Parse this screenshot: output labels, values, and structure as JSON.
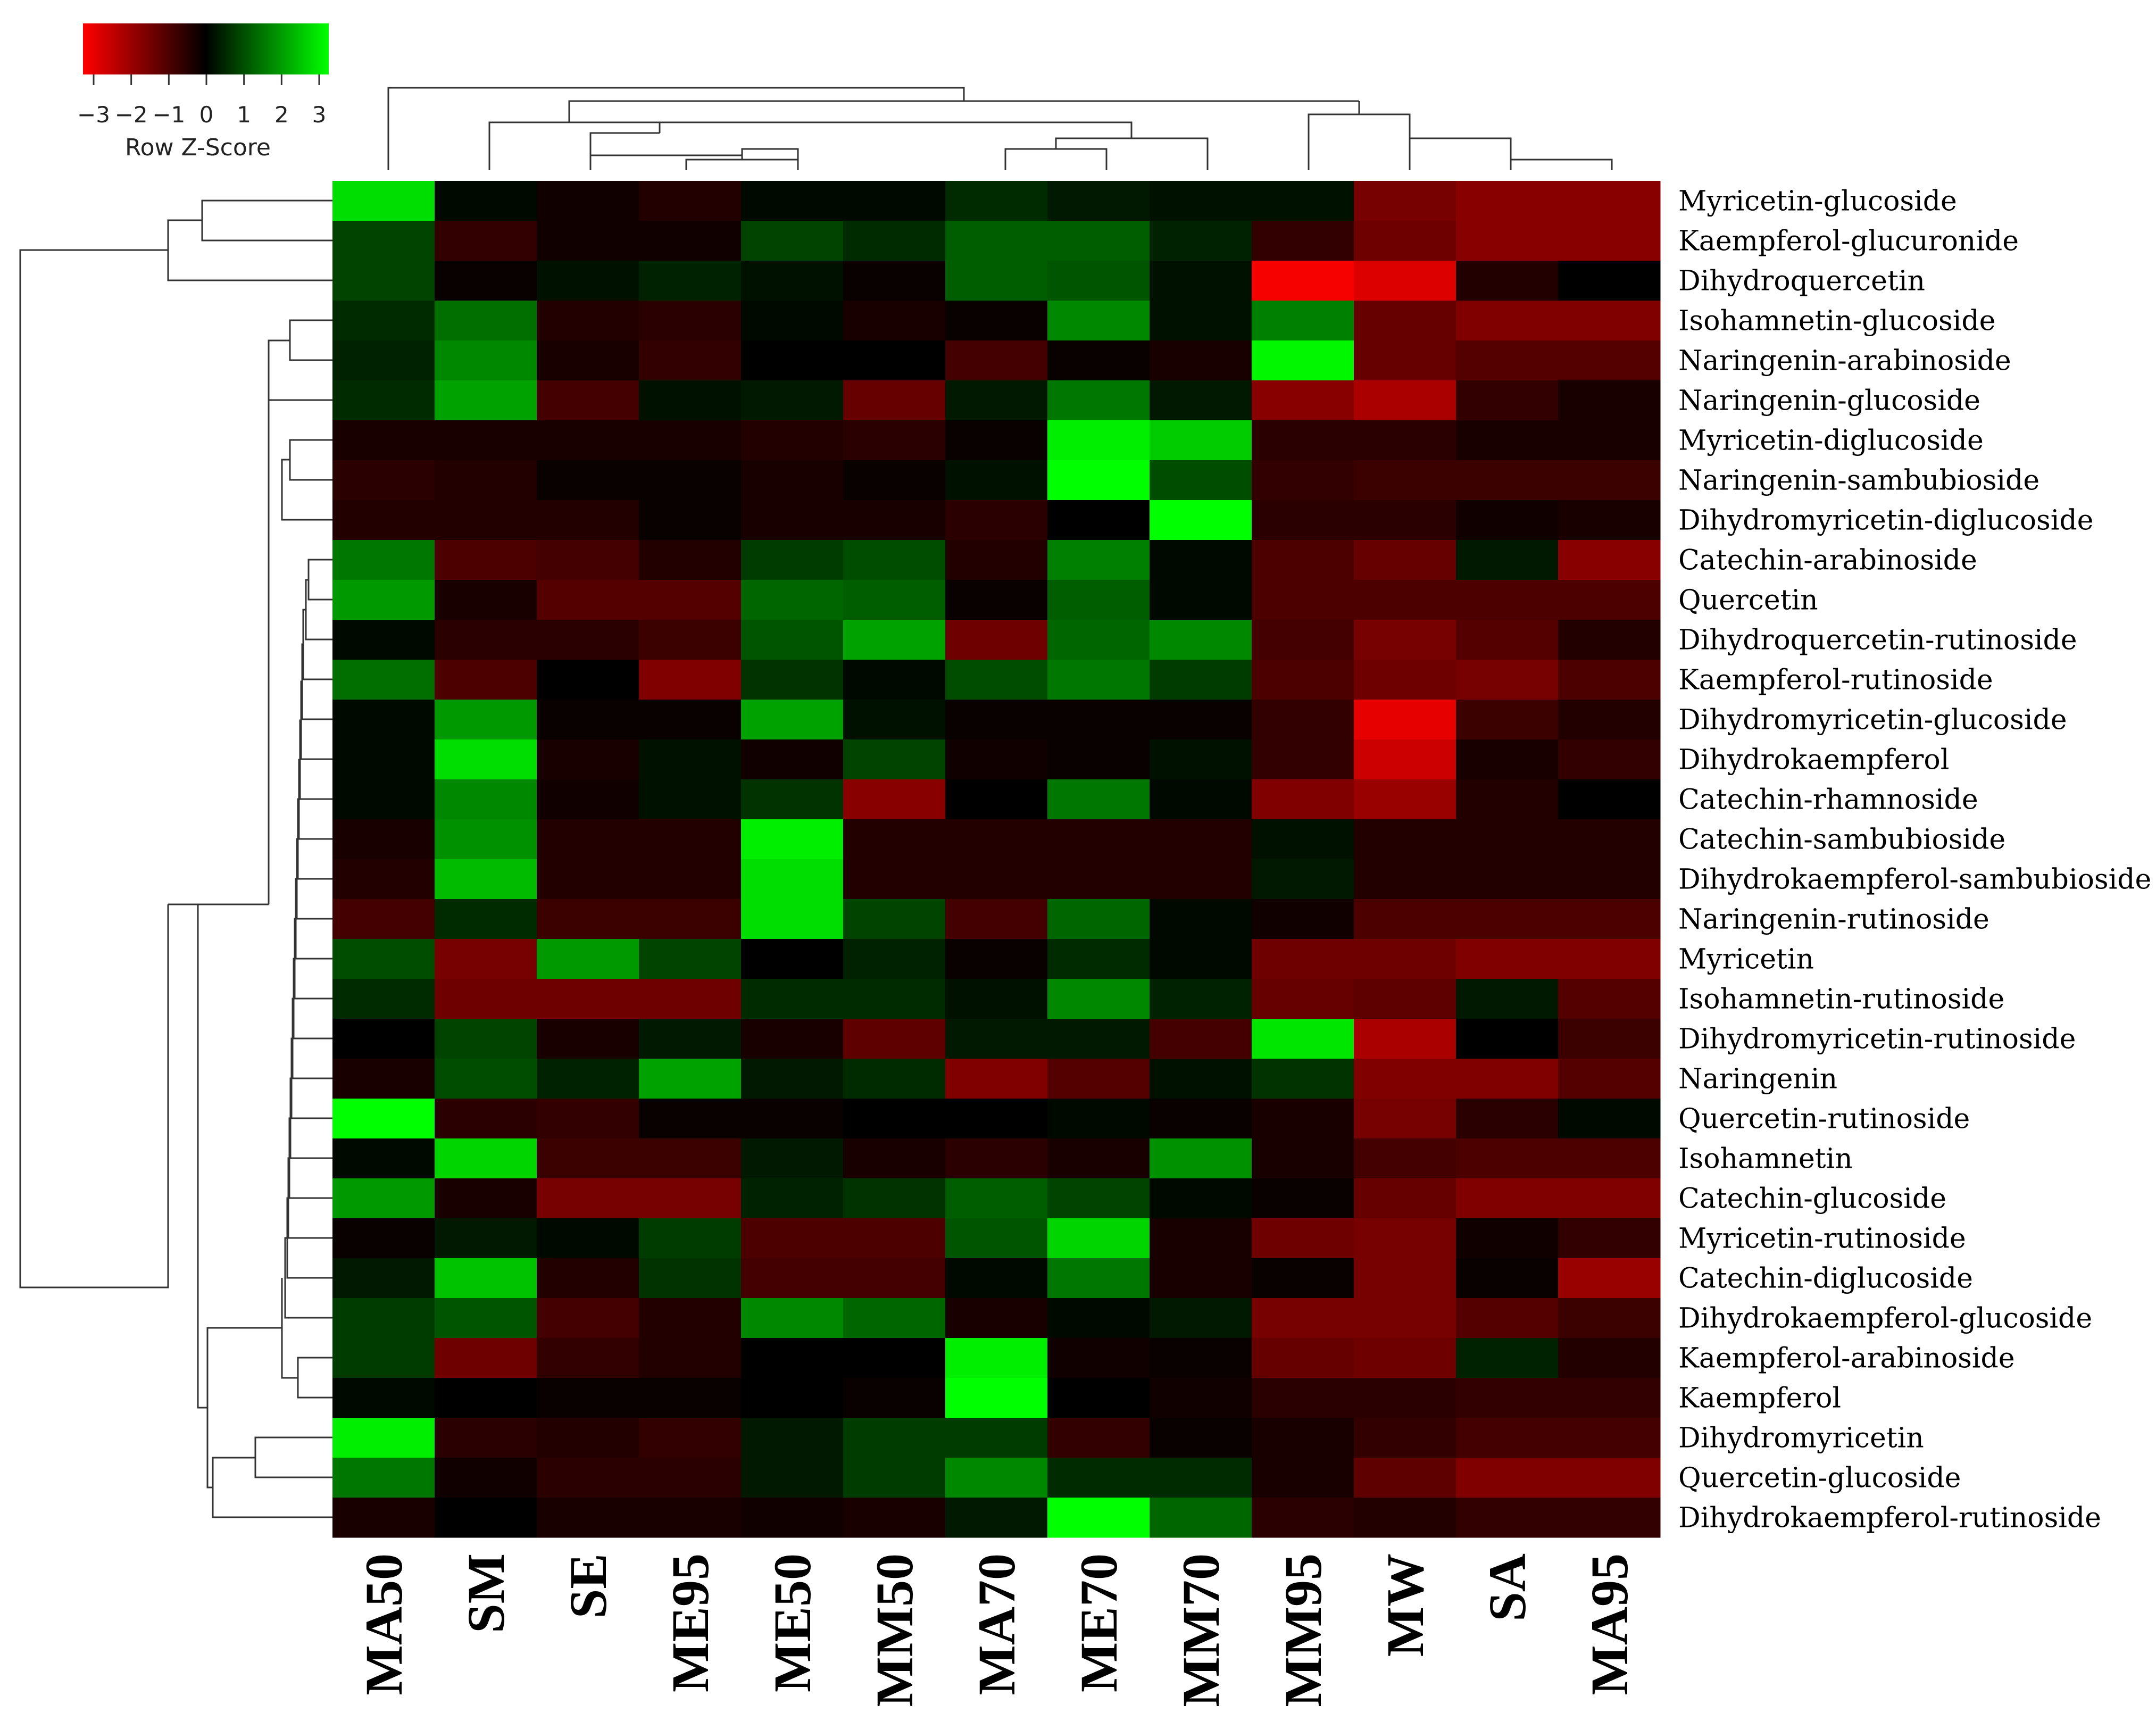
{
  "chart_data": {
    "type": "heatmap",
    "title": "",
    "color_key": {
      "title": "Row Z-Score",
      "ticks": [
        "−3",
        "−2",
        "−1",
        "0",
        "1",
        "2",
        "3"
      ],
      "low_color": "#ff0000",
      "mid_color": "#000000",
      "high_color": "#00ff00",
      "range": [
        -3,
        3
      ]
    },
    "columns": [
      "MA50",
      "SM",
      "SE",
      "ME95",
      "ME50",
      "MM50",
      "MA70",
      "ME70",
      "MM70",
      "MM95",
      "MW",
      "SA",
      "MA95"
    ],
    "rows": [
      "Myricetin-glucoside",
      "Kaempferol-glucuronide",
      "Dihydroquercetin",
      "Isohamnetin-glucoside",
      "Naringenin-arabinoside",
      "Naringenin-glucoside",
      "Myricetin-diglucoside",
      "Naringenin-sambubioside",
      "Dihydromyricetin-diglucoside",
      "Catechin-arabinoside",
      "Quercetin",
      "Dihydroquercetin-rutinoside",
      "Kaempferol-rutinoside",
      "Dihydromyricetin-glucoside",
      "Dihydrokaempferol",
      "Catechin-rhamnoside",
      "Catechin-sambubioside",
      "Dihydrokaempferol-sambubioside",
      "Naringenin-rutinoside",
      "Myricetin",
      "Isohamnetin-rutinoside",
      "Dihydromyricetin-rutinoside",
      "Naringenin",
      "Quercetin-rutinoside",
      "Isohamnetin",
      "Catechin-glucoside",
      "Myricetin-rutinoside",
      "Catechin-diglucoside",
      "Dihydrokaempferol-glucoside",
      "Kaempferol-arabinoside",
      "Kaempferol",
      "Dihydromyricetin",
      "Quercetin-glucoside",
      "Dihydrokaempferol-rutinoside"
    ],
    "values": [
      [
        2.6,
        0.1,
        -0.2,
        -0.4,
        0.1,
        0.1,
        0.5,
        0.3,
        0.2,
        0.2,
        -1.4,
        -1.6,
        -1.6
      ],
      [
        0.8,
        -0.6,
        -0.2,
        -0.2,
        0.8,
        0.5,
        1.1,
        1.1,
        0.4,
        -0.6,
        -1.3,
        -1.6,
        -1.6
      ],
      [
        0.8,
        -0.1,
        0.2,
        0.4,
        0.2,
        -0.1,
        1.1,
        1.0,
        0.2,
        -2.9,
        -2.6,
        -0.4,
        0.0
      ],
      [
        0.5,
        1.3,
        -0.4,
        -0.5,
        0.1,
        -0.3,
        -0.1,
        1.6,
        0.2,
        1.5,
        -1.2,
        -1.5,
        -1.5
      ],
      [
        0.4,
        1.6,
        -0.3,
        -0.6,
        0.0,
        0.0,
        -0.8,
        -0.1,
        -0.3,
        2.9,
        -1.2,
        -1.0,
        -1.0
      ],
      [
        0.5,
        1.9,
        -0.8,
        0.2,
        0.3,
        -1.2,
        0.3,
        1.4,
        0.3,
        -1.6,
        -2.0,
        -0.6,
        -0.3
      ],
      [
        -0.3,
        -0.3,
        -0.3,
        -0.3,
        -0.4,
        -0.5,
        -0.1,
        2.8,
        2.4,
        -0.5,
        -0.5,
        -0.3,
        -0.3
      ],
      [
        -0.5,
        -0.4,
        -0.1,
        -0.1,
        -0.3,
        -0.1,
        0.2,
        3.0,
        0.9,
        -0.6,
        -0.7,
        -0.7,
        -0.7
      ],
      [
        -0.4,
        -0.4,
        -0.4,
        -0.1,
        -0.3,
        -0.3,
        -0.5,
        0.0,
        3.2,
        -0.5,
        -0.5,
        -0.2,
        -0.3
      ],
      [
        1.4,
        -0.9,
        -0.8,
        -0.4,
        0.7,
        0.9,
        -0.4,
        1.5,
        0.1,
        -0.9,
        -1.2,
        0.3,
        -1.6
      ],
      [
        1.8,
        -0.3,
        -1.0,
        -1.0,
        1.2,
        1.1,
        -0.1,
        1.1,
        0.1,
        -0.9,
        -0.9,
        -0.9,
        -0.9
      ],
      [
        0.1,
        -0.5,
        -0.5,
        -0.7,
        1.0,
        1.9,
        -1.3,
        1.2,
        1.6,
        -0.8,
        -1.4,
        -1.0,
        -0.4
      ],
      [
        1.3,
        -0.9,
        0.0,
        -1.5,
        0.6,
        0.1,
        0.9,
        1.4,
        0.7,
        -0.9,
        -1.3,
        -1.4,
        -0.9
      ],
      [
        0.1,
        1.8,
        -0.1,
        -0.1,
        1.9,
        0.2,
        -0.1,
        -0.1,
        -0.1,
        -0.6,
        -2.7,
        -0.7,
        -0.4
      ],
      [
        0.1,
        2.6,
        -0.3,
        0.2,
        -0.2,
        0.8,
        -0.2,
        -0.1,
        0.2,
        -0.6,
        -2.4,
        -0.3,
        -0.6
      ],
      [
        0.1,
        1.6,
        -0.2,
        0.2,
        0.6,
        -1.6,
        0.0,
        1.4,
        0.1,
        -1.5,
        -1.8,
        -0.4,
        0.0
      ],
      [
        -0.3,
        1.7,
        -0.4,
        -0.4,
        2.8,
        -0.4,
        -0.4,
        -0.4,
        -0.4,
        0.2,
        -0.4,
        -0.4,
        -0.4
      ],
      [
        -0.4,
        2.2,
        -0.4,
        -0.4,
        2.6,
        -0.4,
        -0.4,
        -0.4,
        -0.4,
        0.3,
        -0.4,
        -0.4,
        -0.4
      ],
      [
        -0.8,
        0.5,
        -0.7,
        -0.7,
        2.6,
        0.8,
        -0.8,
        1.2,
        0.1,
        -0.2,
        -0.9,
        -0.9,
        -0.9
      ],
      [
        0.9,
        -1.4,
        1.8,
        0.8,
        0.0,
        0.4,
        -0.1,
        0.5,
        0.1,
        -1.3,
        -1.3,
        -1.5,
        -1.5
      ],
      [
        0.5,
        -1.3,
        -1.3,
        -1.3,
        0.5,
        0.5,
        0.2,
        1.6,
        0.4,
        -1.2,
        -1.1,
        0.3,
        -1.0
      ],
      [
        0.0,
        0.8,
        -0.3,
        0.3,
        -0.3,
        -1.1,
        0.3,
        0.3,
        -0.8,
        2.7,
        -2.0,
        0.0,
        -0.7
      ],
      [
        -0.3,
        0.9,
        0.4,
        1.9,
        0.3,
        0.5,
        -1.5,
        -1.0,
        0.2,
        0.6,
        -1.5,
        -1.5,
        -1.0
      ],
      [
        3.2,
        -0.5,
        -0.6,
        -0.1,
        -0.1,
        0.0,
        0.0,
        0.1,
        -0.1,
        -0.3,
        -1.4,
        -0.5,
        0.1
      ],
      [
        0.1,
        2.5,
        -0.7,
        -0.7,
        0.3,
        -0.3,
        -0.5,
        -0.3,
        1.7,
        -0.3,
        -0.8,
        -0.9,
        -0.9
      ],
      [
        1.8,
        -0.3,
        -1.4,
        -1.4,
        0.4,
        0.6,
        1.1,
        0.8,
        0.1,
        -0.1,
        -1.2,
        -1.5,
        -1.5
      ],
      [
        -0.1,
        0.3,
        0.1,
        0.7,
        -0.9,
        -0.9,
        1.0,
        2.5,
        -0.3,
        -1.3,
        -1.4,
        -0.2,
        -0.6
      ],
      [
        0.3,
        2.3,
        -0.4,
        0.6,
        -0.8,
        -0.8,
        0.1,
        1.4,
        -0.3,
        -0.1,
        -1.4,
        -0.1,
        -1.8
      ],
      [
        0.7,
        1.0,
        -0.8,
        -0.4,
        1.6,
        1.2,
        -0.3,
        0.1,
        0.3,
        -1.4,
        -1.4,
        -1.0,
        -0.7
      ],
      [
        0.7,
        -1.3,
        -0.6,
        -0.4,
        0.0,
        0.0,
        2.8,
        -0.2,
        -0.1,
        -1.2,
        -1.3,
        0.4,
        -0.4
      ],
      [
        0.1,
        0.0,
        -0.1,
        -0.1,
        0.0,
        -0.1,
        3.3,
        0.0,
        -0.2,
        -0.5,
        -0.5,
        -0.6,
        -0.6
      ],
      [
        2.8,
        -0.5,
        -0.4,
        -0.6,
        0.3,
        0.7,
        0.7,
        -0.6,
        -0.1,
        -0.3,
        -0.6,
        -0.8,
        -0.8
      ],
      [
        1.4,
        -0.2,
        -0.5,
        -0.5,
        0.3,
        0.7,
        1.6,
        0.5,
        0.5,
        -0.3,
        -1.1,
        -1.5,
        -1.5
      ],
      [
        -0.3,
        0.0,
        -0.3,
        -0.3,
        -0.2,
        -0.3,
        0.3,
        3.0,
        1.2,
        -0.5,
        -0.4,
        -0.6,
        -0.6
      ]
    ]
  }
}
